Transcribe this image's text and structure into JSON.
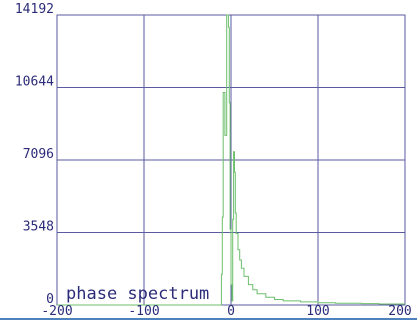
{
  "chart_data": {
    "type": "line",
    "title": "phase spectrum",
    "xlabel": "",
    "ylabel": "",
    "xlim": [
      -200,
      200
    ],
    "ylim": [
      0,
      14192
    ],
    "x_ticks": [
      -200,
      -100,
      0,
      100,
      200
    ],
    "x_tick_labels": [
      "-200",
      "-100",
      "0",
      "100",
      "200"
    ],
    "y_ticks": [
      0,
      3548,
      7096,
      10644,
      14192
    ],
    "y_tick_labels": [
      "0",
      "3548",
      "7096",
      "10644",
      "14192"
    ],
    "grid": true,
    "colors": {
      "line": "#6cbf6c",
      "grid": "#5a5aa0",
      "axis_text": "#2b2b7a",
      "bottom_axis": "#4f81bd"
    },
    "series": [
      {
        "values_x": [
          -200,
          -12,
          -11,
          -10,
          -9,
          -8,
          -7,
          -6,
          -5,
          -4,
          -3,
          -2,
          -1,
          0,
          1,
          2,
          3,
          4,
          5,
          6,
          8,
          10,
          12,
          15,
          20,
          25,
          30,
          40,
          50,
          60,
          80,
          100,
          120,
          150,
          170,
          200
        ],
        "values_y": [
          0,
          0,
          1500,
          4300,
          10400,
          10400,
          8300,
          8300,
          14192,
          14192,
          13600,
          9900,
          3700,
          1000,
          200,
          4200,
          7500,
          6500,
          4500,
          3500,
          2700,
          2200,
          1800,
          1400,
          1000,
          750,
          550,
          380,
          270,
          200,
          150,
          110,
          90,
          70,
          50,
          30
        ]
      }
    ]
  }
}
